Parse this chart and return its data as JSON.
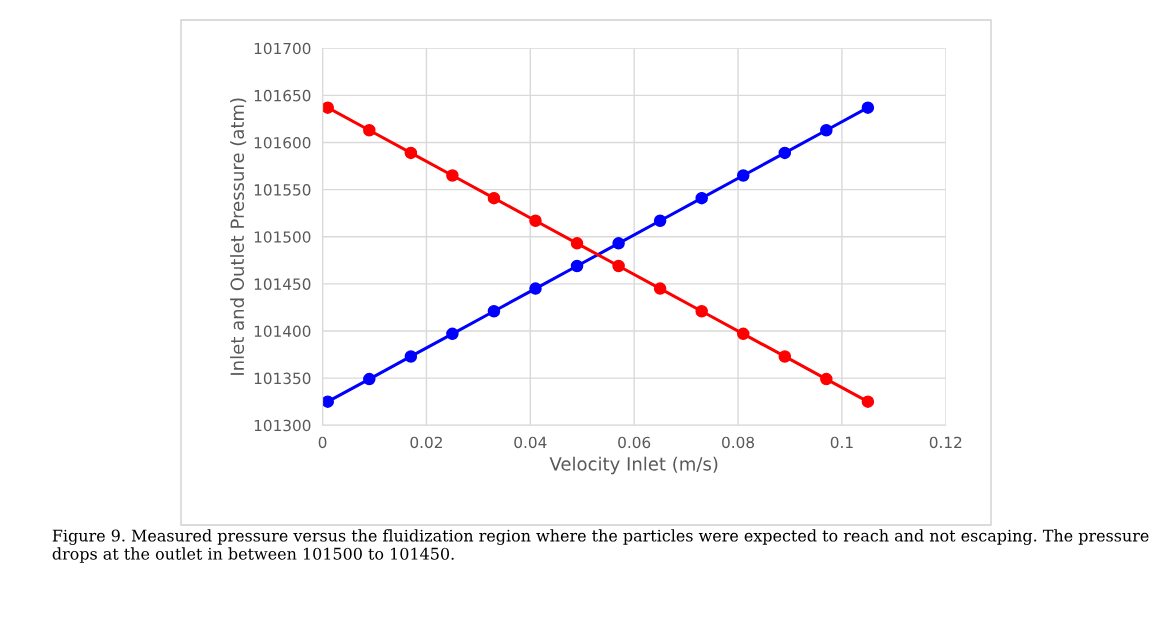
{
  "chart_data": {
    "type": "line",
    "xlabel": "Velocity Inlet (m/s)",
    "ylabel": "Inlet and Outlet Pressure (atm)",
    "x": [
      0.001,
      0.009,
      0.017,
      0.025,
      0.033,
      0.041,
      0.049,
      0.057,
      0.065,
      0.073,
      0.081,
      0.089,
      0.097,
      0.105
    ],
    "series": [
      {
        "color": "#0000ff",
        "values": [
          101325,
          101349,
          101373,
          101397,
          101421,
          101445,
          101469,
          101493,
          101517,
          101541,
          101565,
          101589,
          101613,
          101637
        ]
      },
      {
        "color": "#ff0000",
        "values": [
          101637,
          101613,
          101589,
          101565,
          101541,
          101517,
          101493,
          101469,
          101445,
          101421,
          101397,
          101373,
          101349,
          101325
        ]
      }
    ],
    "xlim": [
      0,
      0.12
    ],
    "xticks": [
      0,
      0.02,
      0.04,
      0.06,
      0.08,
      0.1,
      0.12
    ],
    "ylim": [
      101300,
      101700
    ],
    "yticks": [
      101300,
      101350,
      101400,
      101450,
      101500,
      101550,
      101600,
      101650,
      101700
    ],
    "grid": true,
    "marker": "circle",
    "line_style": "solid",
    "annotations": [
      "Figure 9. Measured pressure versus the fluidization region where the particles were expected to reach and not escaping. The pressure drops at the outlet in between 101500 to 101450."
    ]
  }
}
